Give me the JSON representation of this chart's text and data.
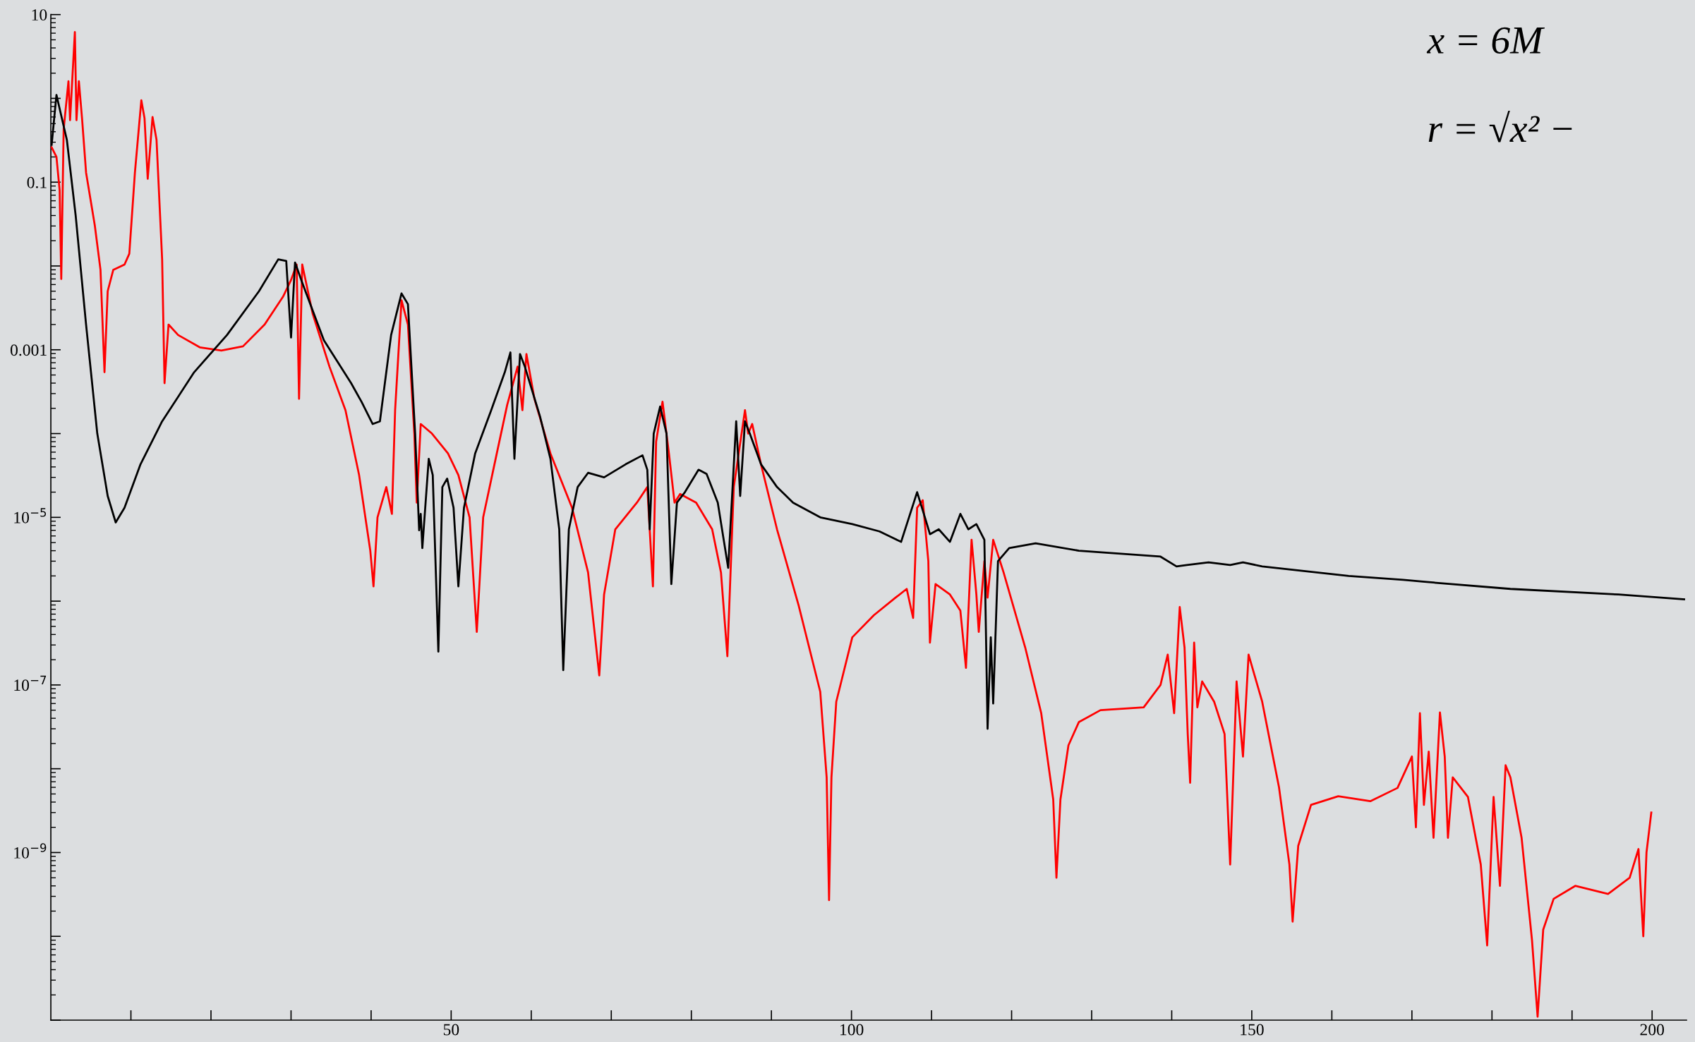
{
  "chart_data": {
    "type": "line",
    "log": "y",
    "grid": false,
    "marker": "none",
    "line_style": "solid",
    "xlim": [
      0,
      204.3
    ],
    "ylim": [
      1e-11,
      10
    ],
    "xticks": [
      {
        "value": 10,
        "label": null
      },
      {
        "value": 20,
        "label": null
      },
      {
        "value": 30,
        "label": null
      },
      {
        "value": 40,
        "label": null
      },
      50,
      {
        "value": 60,
        "label": null
      },
      {
        "value": 70,
        "label": null
      },
      {
        "value": 80,
        "label": null
      },
      {
        "value": 90,
        "label": null
      },
      100,
      {
        "value": 110,
        "label": null
      },
      {
        "value": 120,
        "label": null
      },
      {
        "value": 130,
        "label": null
      },
      {
        "value": 140,
        "label": null
      },
      150,
      {
        "value": 160,
        "label": null
      },
      {
        "value": 170,
        "label": null
      },
      {
        "value": 180,
        "label": null
      },
      {
        "value": 190,
        "label": null
      },
      200
    ],
    "yticks": [
      {
        "value": 10,
        "label": "10"
      },
      {
        "value": 1,
        "label": null
      },
      {
        "value": 0.1,
        "label": "0.1"
      },
      {
        "value": 0.01,
        "label": null
      },
      {
        "value": 0.001,
        "label": "0.001"
      },
      {
        "value": 0.0001,
        "label": null
      },
      {
        "value": 1e-05,
        "label": "10$^{−5}$"
      },
      {
        "value": 1e-06,
        "label": null
      },
      {
        "value": 1e-07,
        "label": "10$^{−7}$"
      },
      {
        "value": 1e-08,
        "label": null
      },
      {
        "value": 1e-09,
        "label": "10$^{−9}$"
      },
      {
        "value": 1e-10,
        "label": null
      },
      {
        "value": 1e-11,
        "label": null
      }
    ],
    "annotations": [
      "x = 6M",
      "r = √x² −"
    ],
    "series": [
      {
        "color": "#000000",
        "x": [
          0.1,
          0.7,
          2.0,
          3.1,
          4.4,
          5.8,
          7.1,
          8.1,
          9.2,
          11.2,
          13.9,
          17.9,
          22.0,
          26.0,
          28.4,
          29.4,
          30.0,
          30.5,
          31.4,
          34.1,
          37.5,
          38.8,
          40.2,
          41.1,
          42.5,
          43.8,
          44.6,
          45.5,
          46.0,
          46.2,
          46.4,
          47.2,
          47.7,
          48.4,
          48.9,
          49.5,
          50.3,
          50.9,
          51.6,
          53.0,
          55.0,
          56.7,
          57.4,
          57.9,
          58.6,
          59.2,
          61.1,
          62.4,
          63.5,
          64.0,
          64.7,
          65.8,
          67.1,
          69.1,
          71.8,
          73.9,
          74.5,
          74.8,
          75.3,
          76.1,
          76.9,
          77.5,
          78.2,
          79.2,
          80.9,
          81.9,
          83.3,
          84.6,
          85.6,
          86.1,
          86.7,
          87.3,
          88.7,
          90.7,
          92.7,
          96.1,
          100.1,
          103.5,
          106.2,
          108.2,
          109.2,
          109.8,
          110.9,
          112.3,
          113.6,
          114.6,
          115.6,
          116.6,
          117.0,
          117.4,
          117.7,
          118.3,
          119.7,
          123.0,
          128.4,
          135.2,
          138.6,
          140.6,
          141.9,
          144.6,
          147.3,
          148.9,
          151.3,
          162.1,
          168.9,
          171.6,
          182.3,
          195.8,
          204.0
        ],
        "values": [
          0.28,
          1.1,
          0.32,
          0.04,
          0.002,
          0.0001,
          1.8e-05,
          8.7e-06,
          1.3e-05,
          4.3e-05,
          0.00014,
          0.00054,
          0.0015,
          0.005,
          0.012,
          0.0115,
          0.0014,
          0.011,
          0.0063,
          0.0013,
          0.0004,
          0.00024,
          0.00013,
          0.00014,
          0.0015,
          0.0047,
          0.0035,
          0.0001,
          7e-06,
          1.1e-05,
          4.3e-06,
          5e-05,
          3.2e-05,
          2.5e-07,
          2.3e-05,
          2.9e-05,
          1.3e-05,
          1.5e-06,
          1.3e-05,
          5.8e-05,
          0.00019,
          0.00054,
          0.00093,
          5e-05,
          0.00089,
          0.00063,
          0.00016,
          5e-05,
          7.2e-06,
          1.5e-07,
          7.2e-06,
          2.3e-05,
          3.4e-05,
          3e-05,
          4.3e-05,
          5.5e-05,
          3.7e-05,
          7.2e-06,
          0.0001,
          0.00021,
          0.0001,
          1.6e-06,
          1.5e-05,
          2e-05,
          3.7e-05,
          3.3e-05,
          1.5e-05,
          2.5e-06,
          0.00014,
          1.8e-05,
          0.00014,
          0.0001,
          4.3e-05,
          2.3e-05,
          1.5e-05,
          1e-05,
          8.3e-06,
          6.8e-06,
          5.1e-06,
          2e-05,
          9.8e-06,
          6.3e-06,
          7.2e-06,
          5.1e-06,
          1.1e-05,
          7.2e-06,
          8.3e-06,
          5.4e-06,
          3e-08,
          3.7e-07,
          6e-08,
          3e-06,
          4.3e-06,
          4.9e-06,
          4e-06,
          3.6e-06,
          3.4e-06,
          2.6e-06,
          2.7e-06,
          2.9e-06,
          2.7e-06,
          2.9e-06,
          2.6e-06,
          2e-06,
          1.8e-06,
          1.7e-06,
          1.4e-06,
          1.2e-06,
          1.05e-06
        ]
      },
      {
        "color": "#ff0000",
        "x": [
          0.1,
          0.7,
          1.1,
          1.3,
          1.6,
          2.2,
          2.4,
          3.0,
          3.2,
          3.5,
          3.9,
          4.4,
          5.5,
          6.2,
          6.7,
          7.1,
          7.8,
          9.2,
          9.8,
          10.5,
          11.3,
          11.7,
          12.1,
          12.7,
          13.2,
          13.9,
          14.2,
          14.7,
          15.9,
          18.6,
          21.3,
          24.0,
          26.7,
          29.0,
          30.0,
          30.7,
          31.0,
          31.4,
          32.7,
          34.8,
          36.8,
          38.5,
          39.9,
          40.3,
          40.8,
          41.9,
          42.6,
          43.0,
          43.8,
          44.6,
          45.4,
          45.7,
          46.2,
          47.6,
          49.6,
          50.9,
          52.3,
          53.2,
          54.0,
          55.7,
          57.0,
          58.3,
          58.9,
          59.4,
          60.4,
          62.4,
          65.1,
          67.1,
          68.5,
          69.1,
          70.5,
          73.2,
          74.5,
          75.2,
          75.6,
          76.4,
          77.2,
          77.9,
          78.6,
          80.6,
          82.6,
          83.7,
          84.5,
          85.3,
          86.7,
          87.1,
          87.6,
          88.7,
          90.7,
          93.4,
          96.1,
          96.9,
          97.2,
          97.5,
          98.1,
          100.1,
          102.8,
          105.5,
          106.9,
          107.7,
          108.2,
          108.9,
          109.6,
          109.8,
          110.5,
          112.3,
          113.6,
          114.3,
          115.0,
          115.6,
          115.9,
          116.6,
          117.0,
          117.7,
          119.0,
          121.7,
          123.7,
          125.2,
          125.6,
          126.1,
          127.1,
          128.4,
          131.1,
          136.5,
          138.6,
          139.5,
          140.3,
          141.0,
          141.6,
          142.0,
          142.3,
          142.8,
          143.2,
          143.8,
          145.3,
          146.6,
          147.3,
          148.1,
          148.9,
          149.6,
          151.3,
          153.4,
          154.7,
          155.1,
          155.8,
          157.4,
          160.8,
          164.8,
          168.2,
          170.0,
          170.5,
          171.0,
          171.5,
          172.1,
          172.7,
          173.5,
          174.1,
          174.5,
          175.1,
          177.0,
          178.6,
          179.4,
          180.2,
          181.0,
          181.7,
          182.3,
          183.7,
          185.0,
          185.7,
          186.4,
          187.7,
          190.4,
          194.5,
          197.2,
          198.3,
          198.9,
          199.3,
          199.9
        ],
        "values": [
          0.26,
          0.2,
          0.08,
          0.007,
          0.43,
          1.6,
          0.55,
          6.2,
          0.55,
          1.6,
          0.57,
          0.13,
          0.03,
          0.009,
          0.00054,
          0.005,
          0.009,
          0.0104,
          0.014,
          0.13,
          0.95,
          0.58,
          0.11,
          0.6,
          0.32,
          0.012,
          0.0004,
          0.002,
          0.0015,
          0.00107,
          0.00098,
          0.0011,
          0.002,
          0.0043,
          0.0068,
          0.0104,
          0.00026,
          0.0104,
          0.0027,
          0.00063,
          0.00019,
          3.2e-05,
          4e-06,
          1.5e-06,
          1e-05,
          2.3e-05,
          1.1e-05,
          0.00019,
          0.0039,
          0.002,
          0.0001,
          1.5e-05,
          0.00013,
          0.0001,
          5.8e-05,
          3.2e-05,
          1e-05,
          4.3e-07,
          1e-05,
          5.8e-05,
          0.00022,
          0.00063,
          0.00019,
          0.00089,
          0.00026,
          5.8e-05,
          1.3e-05,
          2.2e-06,
          1.3e-07,
          1.2e-06,
          7.2e-06,
          1.5e-05,
          2.3e-05,
          1.5e-06,
          8e-05,
          0.00024,
          5.8e-05,
          1.5e-05,
          1.9e-05,
          1.5e-05,
          7.2e-06,
          2.2e-06,
          2.2e-07,
          2.3e-05,
          0.00019,
          0.0001,
          0.00013,
          4.3e-05,
          7.2e-06,
          8.9e-07,
          8.3e-08,
          7.9e-09,
          2.7e-10,
          7.9e-09,
          6.3e-08,
          3.7e-07,
          6.8e-07,
          1.1e-06,
          1.4e-06,
          6.3e-07,
          1.3e-05,
          1.6e-05,
          3e-06,
          3.2e-07,
          1.6e-06,
          1.2e-06,
          7.7e-07,
          1.6e-07,
          5.4e-06,
          1.2e-06,
          4.3e-07,
          3e-06,
          1.1e-06,
          5.4e-06,
          2.2e-06,
          2.8e-07,
          4.6e-08,
          4.3e-09,
          5e-10,
          4.3e-09,
          1.9e-08,
          3.6e-08,
          5e-08,
          5.4e-08,
          1e-07,
          2.3e-07,
          4.6e-08,
          8.5e-07,
          2.8e-07,
          2.6e-08,
          6.8e-09,
          3.2e-07,
          5.4e-08,
          1.1e-07,
          6.3e-08,
          2.6e-08,
          7.2e-10,
          1.1e-07,
          1.4e-08,
          2.3e-07,
          6.3e-08,
          6e-09,
          7.2e-10,
          1.5e-10,
          1.2e-09,
          3.7e-09,
          4.7e-09,
          4.1e-09,
          5.9e-09,
          1.4e-08,
          2e-09,
          4.6e-08,
          3.7e-09,
          1.6e-08,
          1.5e-09,
          4.7e-08,
          1.4e-08,
          1.5e-09,
          7.9e-09,
          4.6e-09,
          7.2e-10,
          7.8e-11,
          4.6e-09,
          4e-10,
          1.1e-08,
          7.9e-09,
          1.5e-09,
          9e-11,
          1.1e-11,
          1.2e-10,
          2.8e-10,
          4e-10,
          3.2e-10,
          5e-10,
          1.1e-09,
          1e-10,
          1e-09,
          3e-09
        ]
      }
    ]
  }
}
